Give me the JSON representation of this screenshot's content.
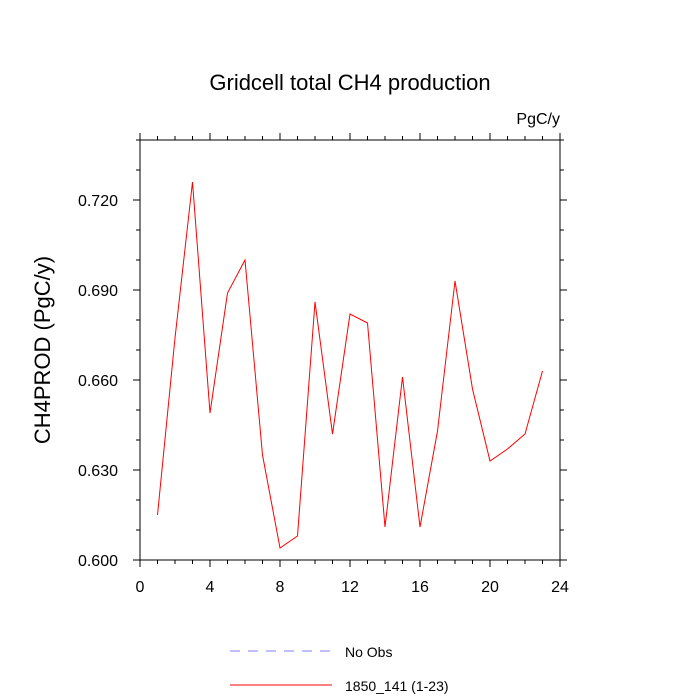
{
  "chart_data": {
    "type": "line",
    "title": "Gridcell total CH4 production",
    "units_label": "PgC/y",
    "ylabel": "CH4PROD  (PgC/y)",
    "xlabel": "",
    "xlim": [
      0,
      24
    ],
    "ylim": [
      0.6,
      0.74
    ],
    "x_ticks": [
      0,
      4,
      8,
      12,
      16,
      20,
      24
    ],
    "y_ticks": [
      0.6,
      0.63,
      0.66,
      0.69,
      0.72
    ],
    "x_tick_labels": [
      "0",
      "4",
      "8",
      "12",
      "16",
      "20",
      "24"
    ],
    "y_tick_labels": [
      "0.600",
      "0.630",
      "0.660",
      "0.690",
      "0.720"
    ],
    "grid": false,
    "legend_position": "bottom",
    "series": [
      {
        "name": "No Obs",
        "color": "#7f7fff",
        "dash": true,
        "x": [],
        "y": []
      },
      {
        "name": "1850_141 (1-23)",
        "color": "#ff0000",
        "dash": false,
        "x": [
          1,
          2,
          3,
          4,
          5,
          6,
          7,
          8,
          9,
          10,
          11,
          12,
          13,
          14,
          15,
          16,
          17,
          18,
          19,
          20,
          21,
          22,
          23
        ],
        "y": [
          0.615,
          0.674,
          0.726,
          0.649,
          0.689,
          0.7,
          0.635,
          0.604,
          0.608,
          0.686,
          0.642,
          0.682,
          0.679,
          0.611,
          0.661,
          0.611,
          0.643,
          0.693,
          0.657,
          0.633,
          0.637,
          0.642,
          0.663
        ]
      }
    ]
  }
}
